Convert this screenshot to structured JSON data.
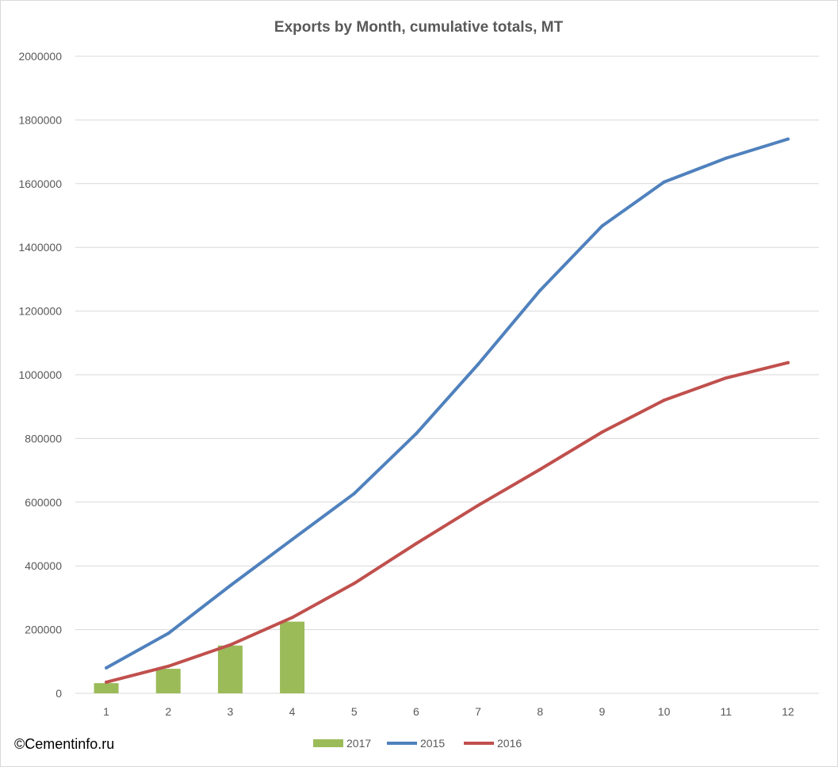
{
  "chart_data": {
    "type": "bar+line",
    "title": "Exports by Month, cumulative totals, MT",
    "xlabel": "",
    "ylabel": "",
    "categories": [
      "1",
      "2",
      "3",
      "4",
      "5",
      "6",
      "7",
      "8",
      "9",
      "10",
      "11",
      "12"
    ],
    "ylim": [
      0,
      2000000
    ],
    "yticks": [
      "0",
      "200000",
      "400000",
      "600000",
      "800000",
      "1000000",
      "1200000",
      "1400000",
      "1600000",
      "1800000",
      "2000000"
    ],
    "grid": true,
    "legend_position": "bottom",
    "series": [
      {
        "name": "2017",
        "kind": "bar",
        "color": "#9bbb59",
        "values": [
          32000,
          77000,
          150000,
          225000,
          null,
          null,
          null,
          null,
          null,
          null,
          null,
          null
        ]
      },
      {
        "name": "2015",
        "kind": "line",
        "color": "#4f81bd",
        "values": [
          80000,
          188000,
          338000,
          483000,
          627000,
          815000,
          1033000,
          1265000,
          1467000,
          1605000,
          1680000,
          1740000
        ]
      },
      {
        "name": "2016",
        "kind": "line",
        "color": "#c0504d",
        "values": [
          35000,
          85000,
          152000,
          238000,
          345000,
          470000,
          590000,
          703000,
          820000,
          920000,
          990000,
          1038000
        ]
      }
    ]
  },
  "credit": "©Cementinfo.ru"
}
